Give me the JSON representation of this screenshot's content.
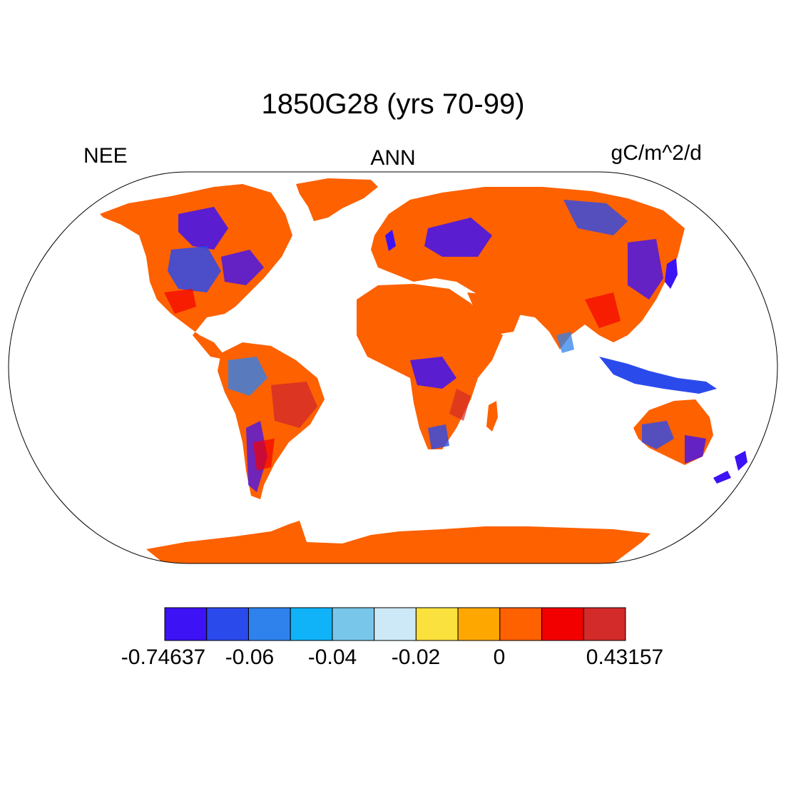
{
  "title": "1850G28 (yrs 70-99)",
  "left_label": "NEE",
  "center_label": "ANN",
  "right_label": "gC/m^2/d",
  "colorbar": {
    "colors": [
      "#3d12f5",
      "#2b4aec",
      "#2f82ec",
      "#10b3f8",
      "#78c6ea",
      "#cde8f6",
      "#fbe13d",
      "#fda700",
      "#fd6100",
      "#f20000",
      "#d32a2a"
    ],
    "labels": [
      "-0.74637",
      "-0.06",
      "-0.04",
      "-0.02",
      "0",
      "0.43157"
    ]
  },
  "map": {
    "projection": "Robinson",
    "land_default_color": "#fd6100",
    "ocean_color": "#ffffff"
  }
}
